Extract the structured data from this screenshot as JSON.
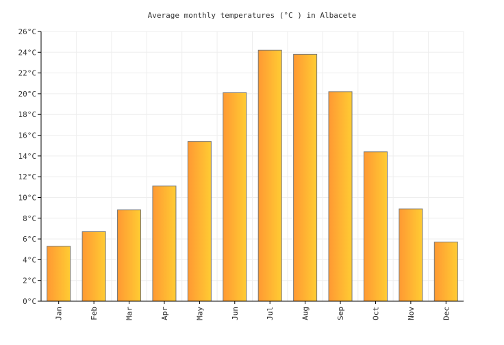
{
  "chart_data": {
    "type": "bar",
    "title": "Average monthly temperatures (°C ) in Albacete",
    "xlabel": "",
    "ylabel": "",
    "categories": [
      "Jan",
      "Feb",
      "Mar",
      "Apr",
      "May",
      "Jun",
      "Jul",
      "Aug",
      "Sep",
      "Oct",
      "Nov",
      "Dec"
    ],
    "values": [
      5.3,
      6.7,
      8.8,
      11.1,
      15.4,
      20.1,
      24.2,
      23.8,
      20.2,
      14.4,
      8.9,
      5.7
    ],
    "ylim": [
      0,
      26
    ],
    "yticks": [
      "0°C",
      "2°C",
      "4°C",
      "6°C",
      "8°C",
      "10°C",
      "12°C",
      "14°C",
      "16°C",
      "18°C",
      "20°C",
      "22°C",
      "24°C",
      "26°C"
    ],
    "grid": true,
    "legend": "none",
    "colors": {
      "bar_left": "#ff9933",
      "bar_right": "#ffcc33",
      "bar_stroke": "#777777",
      "grid": "#eeeeee",
      "axis": "#000000"
    }
  }
}
